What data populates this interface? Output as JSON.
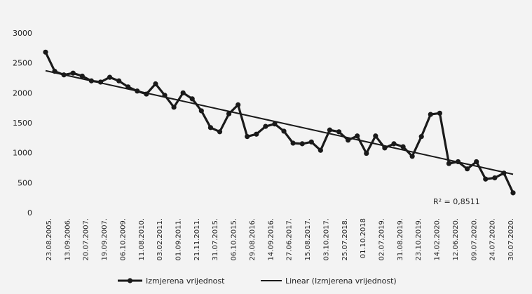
{
  "chart_data": {
    "type": "line",
    "title": "",
    "xlabel": "",
    "ylabel": "",
    "ylim": [
      0,
      3000
    ],
    "yticks": [
      0,
      500,
      1000,
      1500,
      2000,
      2500,
      3000
    ],
    "grid": false,
    "legend_position": "bottom",
    "x_tick_labels": [
      "23.08.2005.",
      "13.09.2006.",
      "20.07.2007.",
      "19.09.2007.",
      "06.10.2009.",
      "11.08.2010.",
      "03.02.2011.",
      "01.09.2011.",
      "21.11.2011.",
      "31.07.2015.",
      "06.10.2015.",
      "29.08.2016.",
      "14.09.2016.",
      "27.06.2017.",
      "15.08.2017.",
      "03.10.2017.",
      "25.07.2018.",
      "01.10.2018",
      "02.07.2019.",
      "31.08.2019.",
      "23.10.2019.",
      "14.02.2020.",
      "12.06.2020.",
      "09.07.2020.",
      "24.07.2020.",
      "30.07.2020."
    ],
    "series": [
      {
        "name": "Izmjerena vrijednost",
        "color": "#1a1a1a",
        "values": [
          2680,
          2360,
          2300,
          2330,
          2280,
          2200,
          2180,
          2260,
          2200,
          2100,
          2030,
          1980,
          2150,
          1960,
          1760,
          2000,
          1900,
          1700,
          1420,
          1350,
          1650,
          1800,
          1270,
          1310,
          1440,
          1480,
          1360,
          1160,
          1150,
          1180,
          1040,
          1380,
          1350,
          1210,
          1280,
          990,
          1280,
          1080,
          1150,
          1100,
          940,
          1270,
          1640,
          1660,
          820,
          850,
          730,
          850,
          560,
          580,
          660,
          330
        ]
      }
    ],
    "trendline": {
      "name": "Linear (Izmjerena vrijednost)",
      "type": "linear",
      "start": 2370,
      "end": 640,
      "r_squared_label": "R² = 0,8511"
    }
  }
}
